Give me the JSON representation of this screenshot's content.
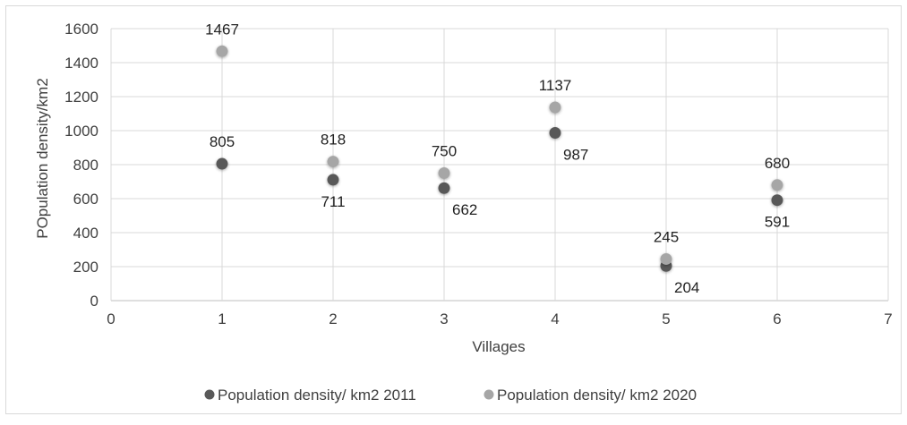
{
  "chart_data": {
    "type": "scatter",
    "title": "",
    "xlabel": "Villages",
    "ylabel": "POpulation density/km2",
    "xlim": [
      0,
      7
    ],
    "ylim": [
      0,
      1600
    ],
    "x_ticks": [
      "0",
      "1",
      "2",
      "3",
      "4",
      "5",
      "6",
      "7"
    ],
    "y_ticks": [
      "0",
      "200",
      "400",
      "600",
      "800",
      "1000",
      "1200",
      "1400",
      "1600"
    ],
    "grid": true,
    "legend_position": "bottom",
    "series": [
      {
        "name": "Population density/ km2 2011",
        "color": "#595959",
        "points": [
          {
            "x": 1,
            "y": 805,
            "label": "805"
          },
          {
            "x": 2,
            "y": 711,
            "label": "711"
          },
          {
            "x": 3,
            "y": 662,
            "label": "662"
          },
          {
            "x": 4,
            "y": 987,
            "label": "987"
          },
          {
            "x": 5,
            "y": 204,
            "label": "204"
          },
          {
            "x": 6,
            "y": 591,
            "label": "591"
          }
        ]
      },
      {
        "name": "Population density/ km2 2020",
        "color": "#a6a6a6",
        "points": [
          {
            "x": 1,
            "y": 1467,
            "label": "1467"
          },
          {
            "x": 2,
            "y": 818,
            "label": "818"
          },
          {
            "x": 3,
            "y": 750,
            "label": "750"
          },
          {
            "x": 4,
            "y": 1137,
            "label": "1137"
          },
          {
            "x": 5,
            "y": 245,
            "label": "245"
          },
          {
            "x": 6,
            "y": 680,
            "label": "680"
          }
        ]
      }
    ]
  }
}
